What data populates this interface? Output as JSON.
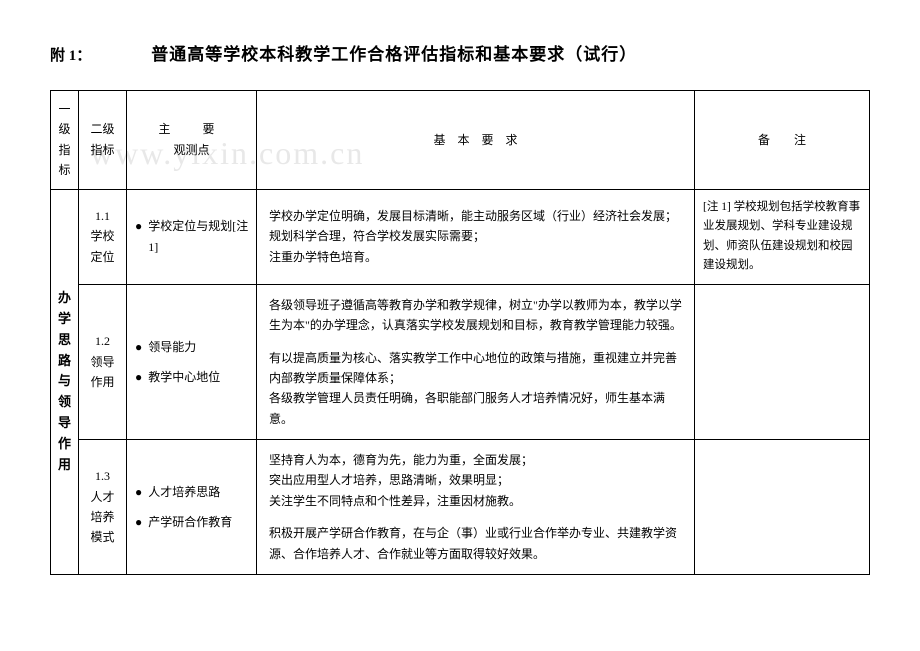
{
  "watermark": "www.yixin.com.cn",
  "header": {
    "prefix": "附 1：",
    "title": "普通高等学校本科教学工作合格评估指标和基本要求（试行）"
  },
  "columns": {
    "l1": "一级\n指标",
    "l2": "二级\n指标",
    "obs_line1": "主　要",
    "obs_line2": "观测点",
    "req": "基　本　要　求",
    "note": "备　　注"
  },
  "level1": "办学思路与领导作用",
  "rows": [
    {
      "l2": "1.1\n学校\n定位",
      "obs": [
        {
          "bullet": "●",
          "text": "学校定位与规划[注 1]"
        }
      ],
      "req": [
        "学校办学定位明确，发展目标清晰，能主动服务区域（行业）经济社会发展；规划科学合理，符合学校发展实际需要；\n注重办学特色培育。"
      ],
      "note": "[注 1] 学校规划包括学校教育事业发展规划、学科专业建设规划、师资队伍建设规划和校园建设规划。"
    },
    {
      "l2": "1.2\n领导\n作用",
      "obs": [
        {
          "bullet": "●",
          "text": "领导能力"
        },
        {
          "bullet": "●",
          "text": "教学中心地位"
        }
      ],
      "req": [
        "各级领导班子遵循高等教育办学和教学规律，树立\"办学以教师为本，教学以学生为本\"的办学理念，认真落实学校发展规划和目标，教育教学管理能力较强。",
        "有以提高质量为核心、落实教学工作中心地位的政策与措施，重视建立并完善内部教学质量保障体系；\n各级教学管理人员责任明确，各职能部门服务人才培养情况好，师生基本满意。"
      ],
      "note": ""
    },
    {
      "l2": "1.3\n人才\n培养\n模式",
      "obs": [
        {
          "bullet": "●",
          "text": "人才培养思路"
        },
        {
          "bullet": "●",
          "text": "产学研合作教育"
        }
      ],
      "req": [
        "坚持育人为本，德育为先，能力为重，全面发展；\n突出应用型人才培养，思路清晰，效果明显；\n关注学生不同特点和个性差异，注重因材施教。",
        "积极开展产学研合作教育，在与企（事）业或行业合作举办专业、共建教学资源、合作培养人才、合作就业等方面取得较好效果。"
      ],
      "note": ""
    }
  ]
}
